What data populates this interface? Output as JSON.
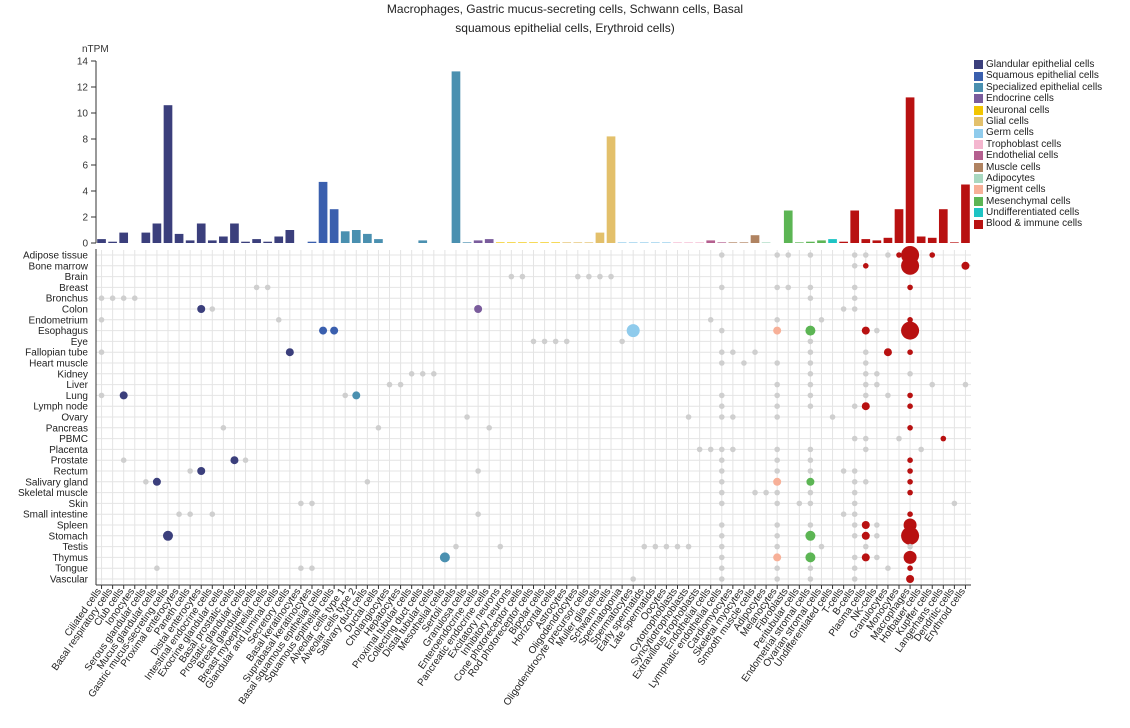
{
  "title_lines": [
    "Macrophages, Gastric mucus-secreting cells, Schwann cells, Basal",
    "squamous epithelial cells, Erythroid cells)"
  ],
  "chart_data": {
    "type": "bar",
    "ylabel": "nTPM",
    "ylim": [
      0,
      14
    ],
    "yticks": [
      0,
      2,
      4,
      6,
      8,
      10,
      12,
      14
    ],
    "grid": true,
    "legend_position": "right",
    "legend": [
      {
        "name": "Glandular epithelial cells",
        "color": "#3b3f7c"
      },
      {
        "name": "Squamous epithelial cells",
        "color": "#3a5fae"
      },
      {
        "name": "Specialized epithelial cells",
        "color": "#4a90b0"
      },
      {
        "name": "Endocrine cells",
        "color": "#7a5c9c"
      },
      {
        "name": "Neuronal cells",
        "color": "#f2c500"
      },
      {
        "name": "Glial cells",
        "color": "#e3c06b"
      },
      {
        "name": "Germ cells",
        "color": "#8fcbec"
      },
      {
        "name": "Trophoblast cells",
        "color": "#f4b6cf"
      },
      {
        "name": "Endothelial cells",
        "color": "#b45f8f"
      },
      {
        "name": "Muscle cells",
        "color": "#b08361"
      },
      {
        "name": "Adipocytes",
        "color": "#a8d8c0"
      },
      {
        "name": "Pigment cells",
        "color": "#f7b098"
      },
      {
        "name": "Mesenchymal cells",
        "color": "#5cb554"
      },
      {
        "name": "Undifferentiated cells",
        "color": "#1ec4c4"
      },
      {
        "name": "Blood & immune cells",
        "color": "#b81111"
      }
    ],
    "categories": [
      "Ciliated cells",
      "Basal respiratory cells",
      "Club cells",
      "Ionocytes",
      "Serous glandular cells",
      "Mucus glandular cells",
      "Gastric mucus-secreting cells",
      "Proximal enterocytes",
      "Paneth cells",
      "Distal enterocytes",
      "Intestinal endocrine cells",
      "Exocrine glandular cells",
      "Basal prostatic cells",
      "Prostatic glandular cells",
      "Breast glandular cells",
      "Breast myoepithelial cells",
      "Glandular and luminal cells",
      "Secretory cells",
      "Basal keratinocytes",
      "Suprabasal keratinocytes",
      "Basal squamous epithelial cells",
      "Squamous epithelial cells",
      "Alveolar cells type 1",
      "Alveolar cells type 2",
      "Salivary duct cells",
      "Ductal cells",
      "Cholangiocytes",
      "Hepatocytes",
      "Proximal tubular cells",
      "Collecting duct cells",
      "Distal tubular cells",
      "Mesothelial cells",
      "Sertoli cells",
      "Granulosa cells",
      "Enteroendocrine cells",
      "Pancreatic endocrine cells",
      "Excitatory neurons",
      "Inhibitory neurons",
      "Cone photoreceptor cells",
      "Rod photoreceptor cells",
      "Bipolar cells",
      "Horizontal cells",
      "Astrocytes",
      "Oligodendrocytes",
      "Oligodendrocyte precursor cells",
      "Muller glia cells",
      "Schwann cells",
      "Spermatogonia",
      "Spermatocytes",
      "Early spermatids",
      "Late spermatids",
      "Oocytes",
      "Cytotrophoblasts",
      "Syncytiotrophoblasts",
      "Extravillous trophoblasts",
      "Endothelial cells",
      "Lymphatic endothelial cells",
      "Cardiomyocytes",
      "Skeletal myocytes",
      "Smooth muscle cells",
      "Adipocytes",
      "Melanocytes",
      "Fibroblasts",
      "Peritubular cells",
      "Endometrial stromal cells",
      "Ovarian stromal cells",
      "Undifferentiated cells",
      "T-cells",
      "B-cells",
      "Plasma cells",
      "NK-cells",
      "Granulocytes",
      "Monocytes",
      "Macrophages",
      "Hofbauer cells",
      "Kupffer cells",
      "Langerhans cells",
      "Dendritic cells",
      "Erythroid cells"
    ],
    "category_groups": [
      0,
      0,
      0,
      0,
      0,
      0,
      0,
      0,
      0,
      0,
      0,
      0,
      0,
      0,
      0,
      0,
      0,
      0,
      1,
      1,
      1,
      1,
      2,
      2,
      2,
      2,
      2,
      2,
      2,
      2,
      2,
      2,
      2,
      2,
      3,
      3,
      4,
      4,
      4,
      4,
      4,
      4,
      5,
      5,
      5,
      5,
      5,
      6,
      6,
      6,
      6,
      6,
      7,
      7,
      7,
      8,
      8,
      9,
      9,
      9,
      10,
      11,
      12,
      12,
      12,
      12,
      13,
      14,
      14,
      14,
      14,
      14,
      14,
      14,
      14,
      14,
      14,
      14,
      14
    ],
    "values": [
      0.3,
      0.1,
      0.8,
      0,
      0.8,
      1.5,
      10.6,
      0.7,
      0.2,
      1.5,
      0.2,
      0.5,
      1.5,
      0.1,
      0.3,
      0.1,
      0.5,
      1.0,
      0,
      0.1,
      4.7,
      2.6,
      0.9,
      1.0,
      0.7,
      0.3,
      0,
      0,
      0,
      0.2,
      0,
      0,
      13.2,
      0.05,
      0.2,
      0.3,
      0.05,
      0.05,
      0.05,
      0.05,
      0.05,
      0.05,
      0.05,
      0.05,
      0.05,
      0.8,
      8.2,
      0.05,
      0.05,
      0.05,
      0.05,
      0.05,
      0.05,
      0.05,
      0.05,
      0.2,
      0.05,
      0.05,
      0.05,
      0.6,
      0.05,
      0,
      2.5,
      0.05,
      0.1,
      0.2,
      0.3,
      0.1,
      2.5,
      0.3,
      0.2,
      0.4,
      2.6,
      11.2,
      0.5,
      0.4,
      2.6,
      0.05,
      4.5
    ],
    "tissues": [
      "Adipose tissue",
      "Bone marrow",
      "Brain",
      "Breast",
      "Bronchus",
      "Colon",
      "Endometrium",
      "Esophagus",
      "Eye",
      "Fallopian tube",
      "Heart muscle",
      "Kidney",
      "Liver",
      "Lung",
      "Lymph node",
      "Ovary",
      "Pancreas",
      "PBMC",
      "Placenta",
      "Prostate",
      "Rectum",
      "Salivary gland",
      "Skeletal muscle",
      "Skin",
      "Small intestine",
      "Spleen",
      "Stomach",
      "Testis",
      "Thymus",
      "Tongue",
      "Vascular"
    ],
    "dots": [
      [
        0,
        56,
        0,
        1
      ],
      [
        0,
        61,
        0,
        1
      ],
      [
        0,
        62,
        0,
        1
      ],
      [
        0,
        64,
        0,
        1
      ],
      [
        0,
        68,
        0,
        1
      ],
      [
        0,
        69,
        0,
        1
      ],
      [
        0,
        71,
        0,
        1
      ],
      [
        0,
        72,
        1,
        1
      ],
      [
        0,
        73,
        1,
        5
      ],
      [
        0,
        75,
        1,
        1
      ],
      [
        1,
        68,
        0,
        1
      ],
      [
        1,
        69,
        1,
        1
      ],
      [
        1,
        73,
        1,
        5
      ],
      [
        1,
        78,
        1,
        2
      ],
      [
        2,
        37,
        0,
        1
      ],
      [
        2,
        38,
        0,
        1
      ],
      [
        2,
        43,
        0,
        1
      ],
      [
        2,
        44,
        0,
        1
      ],
      [
        2,
        45,
        0,
        1
      ],
      [
        2,
        46,
        0,
        1
      ],
      [
        3,
        14,
        0,
        1
      ],
      [
        3,
        15,
        0,
        1
      ],
      [
        3,
        56,
        0,
        1
      ],
      [
        3,
        61,
        0,
        1
      ],
      [
        3,
        62,
        0,
        1
      ],
      [
        3,
        64,
        0,
        1
      ],
      [
        3,
        68,
        0,
        1
      ],
      [
        3,
        73,
        1,
        1
      ],
      [
        4,
        0,
        0,
        1
      ],
      [
        4,
        1,
        0,
        1
      ],
      [
        4,
        2,
        0,
        1
      ],
      [
        4,
        3,
        0,
        1
      ],
      [
        4,
        64,
        0,
        1
      ],
      [
        4,
        68,
        0,
        1
      ],
      [
        5,
        9,
        1,
        2
      ],
      [
        5,
        10,
        0,
        1
      ],
      [
        5,
        34,
        1,
        2
      ],
      [
        5,
        67,
        0,
        1
      ],
      [
        5,
        68,
        0,
        1
      ],
      [
        6,
        0,
        0,
        1
      ],
      [
        6,
        16,
        0,
        1
      ],
      [
        6,
        55,
        0,
        1
      ],
      [
        6,
        61,
        0,
        1
      ],
      [
        6,
        65,
        0,
        1
      ],
      [
        6,
        73,
        1,
        1
      ],
      [
        7,
        20,
        1,
        2
      ],
      [
        7,
        21,
        1,
        2
      ],
      [
        7,
        48,
        1,
        4
      ],
      [
        7,
        56,
        0,
        1
      ],
      [
        7,
        61,
        1,
        2
      ],
      [
        7,
        64,
        1,
        3
      ],
      [
        7,
        69,
        1,
        2
      ],
      [
        7,
        70,
        0,
        1
      ],
      [
        7,
        73,
        1,
        5
      ],
      [
        8,
        39,
        0,
        1
      ],
      [
        8,
        40,
        0,
        1
      ],
      [
        8,
        41,
        0,
        1
      ],
      [
        8,
        42,
        0,
        1
      ],
      [
        8,
        47,
        0,
        1
      ],
      [
        8,
        64,
        0,
        1
      ],
      [
        9,
        0,
        0,
        1
      ],
      [
        9,
        17,
        1,
        2
      ],
      [
        9,
        56,
        0,
        1
      ],
      [
        9,
        57,
        0,
        1
      ],
      [
        9,
        59,
        0,
        1
      ],
      [
        9,
        64,
        0,
        1
      ],
      [
        9,
        69,
        0,
        1
      ],
      [
        9,
        71,
        1,
        2
      ],
      [
        9,
        73,
        1,
        1
      ],
      [
        10,
        56,
        0,
        1
      ],
      [
        10,
        58,
        0,
        1
      ],
      [
        10,
        61,
        0,
        1
      ],
      [
        10,
        64,
        0,
        1
      ],
      [
        10,
        69,
        0,
        1
      ],
      [
        11,
        28,
        0,
        1
      ],
      [
        11,
        29,
        0,
        1
      ],
      [
        11,
        30,
        0,
        1
      ],
      [
        11,
        64,
        0,
        1
      ],
      [
        11,
        69,
        0,
        1
      ],
      [
        11,
        70,
        0,
        1
      ],
      [
        11,
        73,
        0,
        1
      ],
      [
        12,
        26,
        0,
        1
      ],
      [
        12,
        27,
        0,
        1
      ],
      [
        12,
        61,
        0,
        1
      ],
      [
        12,
        64,
        0,
        1
      ],
      [
        12,
        69,
        0,
        1
      ],
      [
        12,
        70,
        0,
        1
      ],
      [
        12,
        75,
        0,
        1
      ],
      [
        12,
        78,
        0,
        1
      ],
      [
        13,
        0,
        0,
        1
      ],
      [
        13,
        2,
        1,
        2
      ],
      [
        13,
        22,
        0,
        1
      ],
      [
        13,
        23,
        1,
        2
      ],
      [
        13,
        56,
        0,
        1
      ],
      [
        13,
        61,
        0,
        1
      ],
      [
        13,
        64,
        0,
        1
      ],
      [
        13,
        69,
        0,
        1
      ],
      [
        13,
        71,
        0,
        1
      ],
      [
        13,
        73,
        1,
        1
      ],
      [
        14,
        56,
        0,
        1
      ],
      [
        14,
        61,
        0,
        1
      ],
      [
        14,
        64,
        0,
        1
      ],
      [
        14,
        68,
        0,
        1
      ],
      [
        14,
        69,
        1,
        2
      ],
      [
        14,
        73,
        1,
        1
      ],
      [
        15,
        33,
        0,
        1
      ],
      [
        15,
        53,
        0,
        1
      ],
      [
        15,
        56,
        0,
        1
      ],
      [
        15,
        57,
        0,
        1
      ],
      [
        15,
        61,
        0,
        1
      ],
      [
        15,
        66,
        0,
        1
      ],
      [
        16,
        11,
        0,
        1
      ],
      [
        16,
        25,
        0,
        1
      ],
      [
        16,
        35,
        0,
        1
      ],
      [
        16,
        73,
        1,
        1
      ],
      [
        17,
        68,
        0,
        1
      ],
      [
        17,
        69,
        0,
        1
      ],
      [
        17,
        72,
        0,
        1
      ],
      [
        17,
        76,
        1,
        1
      ],
      [
        18,
        54,
        0,
        1
      ],
      [
        18,
        55,
        0,
        1
      ],
      [
        18,
        56,
        0,
        1
      ],
      [
        18,
        57,
        0,
        1
      ],
      [
        18,
        61,
        0,
        1
      ],
      [
        18,
        64,
        0,
        1
      ],
      [
        18,
        69,
        0,
        1
      ],
      [
        18,
        74,
        0,
        1
      ],
      [
        19,
        2,
        0,
        1
      ],
      [
        19,
        12,
        1,
        2
      ],
      [
        19,
        13,
        0,
        1
      ],
      [
        19,
        56,
        0,
        1
      ],
      [
        19,
        61,
        0,
        1
      ],
      [
        19,
        64,
        0,
        1
      ],
      [
        19,
        73,
        1,
        1
      ],
      [
        20,
        8,
        0,
        1
      ],
      [
        20,
        9,
        1,
        2
      ],
      [
        20,
        34,
        0,
        1
      ],
      [
        20,
        56,
        0,
        1
      ],
      [
        20,
        61,
        0,
        1
      ],
      [
        20,
        64,
        0,
        1
      ],
      [
        20,
        67,
        0,
        1
      ],
      [
        20,
        68,
        0,
        1
      ],
      [
        20,
        73,
        1,
        1
      ],
      [
        21,
        4,
        0,
        1
      ],
      [
        21,
        5,
        1,
        2
      ],
      [
        21,
        24,
        0,
        1
      ],
      [
        21,
        56,
        0,
        1
      ],
      [
        21,
        61,
        1,
        2
      ],
      [
        21,
        64,
        1,
        2
      ],
      [
        21,
        68,
        0,
        1
      ],
      [
        21,
        69,
        0,
        1
      ],
      [
        21,
        73,
        1,
        1
      ],
      [
        22,
        56,
        0,
        1
      ],
      [
        22,
        59,
        0,
        1
      ],
      [
        22,
        60,
        0,
        1
      ],
      [
        22,
        61,
        0,
        1
      ],
      [
        22,
        64,
        0,
        1
      ],
      [
        22,
        68,
        0,
        1
      ],
      [
        22,
        73,
        1,
        1
      ],
      [
        23,
        18,
        0,
        1
      ],
      [
        23,
        19,
        0,
        1
      ],
      [
        23,
        56,
        0,
        1
      ],
      [
        23,
        61,
        0,
        1
      ],
      [
        23,
        63,
        0,
        1
      ],
      [
        23,
        64,
        0,
        1
      ],
      [
        23,
        68,
        0,
        1
      ],
      [
        23,
        77,
        0,
        1
      ],
      [
        24,
        7,
        0,
        1
      ],
      [
        24,
        8,
        0,
        1
      ],
      [
        24,
        10,
        0,
        1
      ],
      [
        24,
        34,
        0,
        1
      ],
      [
        24,
        67,
        0,
        1
      ],
      [
        24,
        68,
        0,
        1
      ],
      [
        24,
        73,
        1,
        1
      ],
      [
        25,
        56,
        0,
        1
      ],
      [
        25,
        61,
        0,
        1
      ],
      [
        25,
        64,
        0,
        1
      ],
      [
        25,
        68,
        0,
        1
      ],
      [
        25,
        69,
        1,
        2
      ],
      [
        25,
        70,
        0,
        1
      ],
      [
        25,
        73,
        1,
        4
      ],
      [
        26,
        6,
        1,
        3
      ],
      [
        26,
        56,
        0,
        1
      ],
      [
        26,
        61,
        0,
        1
      ],
      [
        26,
        64,
        1,
        3
      ],
      [
        26,
        68,
        0,
        1
      ],
      [
        26,
        69,
        1,
        2
      ],
      [
        26,
        70,
        0,
        1
      ],
      [
        26,
        73,
        1,
        5
      ],
      [
        27,
        32,
        0,
        1
      ],
      [
        27,
        36,
        0,
        1
      ],
      [
        27,
        49,
        0,
        1
      ],
      [
        27,
        50,
        0,
        1
      ],
      [
        27,
        51,
        0,
        1
      ],
      [
        27,
        52,
        0,
        1
      ],
      [
        27,
        53,
        0,
        1
      ],
      [
        27,
        56,
        0,
        1
      ],
      [
        27,
        61,
        0,
        1
      ],
      [
        27,
        65,
        0,
        1
      ],
      [
        27,
        69,
        0,
        1
      ],
      [
        27,
        73,
        0,
        1
      ],
      [
        28,
        31,
        1,
        3
      ],
      [
        28,
        56,
        0,
        1
      ],
      [
        28,
        61,
        1,
        2
      ],
      [
        28,
        64,
        1,
        3
      ],
      [
        28,
        68,
        0,
        1
      ],
      [
        28,
        69,
        1,
        2
      ],
      [
        28,
        70,
        0,
        1
      ],
      [
        28,
        73,
        1,
        4
      ],
      [
        29,
        5,
        0,
        1
      ],
      [
        29,
        18,
        0,
        1
      ],
      [
        29,
        19,
        0,
        1
      ],
      [
        29,
        56,
        0,
        1
      ],
      [
        29,
        61,
        0,
        1
      ],
      [
        29,
        64,
        0,
        1
      ],
      [
        29,
        68,
        0,
        1
      ],
      [
        29,
        71,
        0,
        1
      ],
      [
        29,
        73,
        1,
        1
      ],
      [
        30,
        48,
        0,
        1
      ],
      [
        30,
        56,
        0,
        1
      ],
      [
        30,
        61,
        0,
        1
      ],
      [
        30,
        64,
        0,
        1
      ],
      [
        30,
        68,
        0,
        1
      ],
      [
        30,
        73,
        1,
        2
      ]
    ]
  }
}
